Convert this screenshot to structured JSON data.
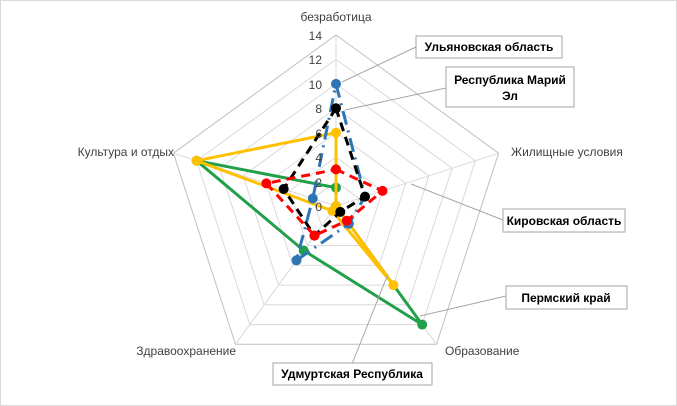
{
  "chart_data": {
    "type": "radar",
    "axes": [
      "безработица",
      "Жилищные условия",
      "Образование",
      "Здравоохранение",
      "Культура и отдых"
    ],
    "rmin": 0,
    "rmax": 14,
    "ticks": [
      "0",
      "2",
      "4",
      "6",
      "8",
      "10",
      "12",
      "14"
    ],
    "grid": true,
    "series": [
      {
        "name": "Ульяновская область",
        "color": "#2e75b6",
        "dash": "long-dash-dot",
        "values": [
          10,
          2.5,
          1.8,
          5.5,
          2
        ]
      },
      {
        "name": "Республика Марий Эл",
        "color": "#000000",
        "dash": "dash",
        "values": [
          8,
          2.5,
          0.6,
          3,
          4.5
        ]
      },
      {
        "name": "Кировская область",
        "color": "#ff0000",
        "dash": "dash",
        "values": [
          3,
          4,
          1.5,
          3,
          6
        ]
      },
      {
        "name": "Пермский край",
        "color": "#21a04a",
        "dash": "solid",
        "values": [
          1.5,
          0,
          12,
          4.5,
          12
        ]
      },
      {
        "name": "Удмуртская Республика",
        "color": "#ffc000",
        "dash": "solid",
        "values": [
          6,
          0,
          8,
          0.5,
          12
        ]
      }
    ]
  }
}
